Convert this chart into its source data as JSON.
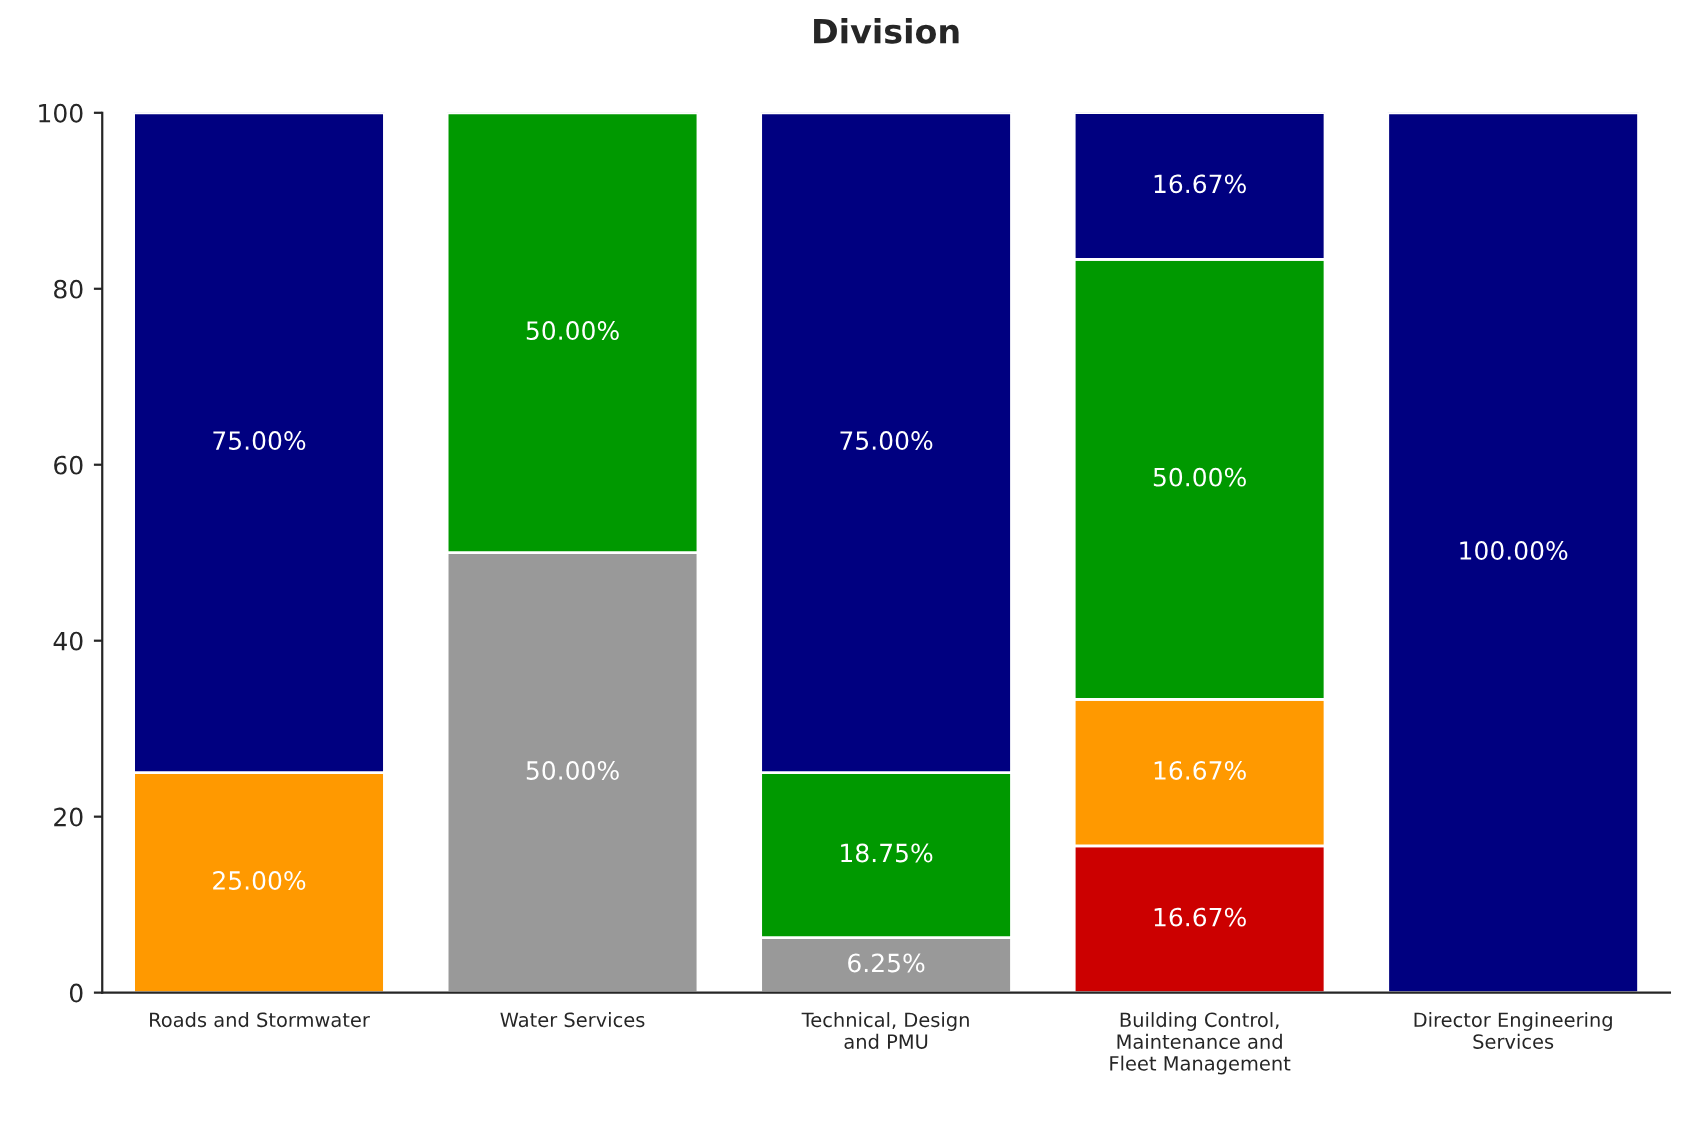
{
  "chart_data": {
    "type": "bar",
    "title": "Division",
    "stacked": true,
    "categories": [
      "Roads and Stormwater",
      "Water Services",
      "Technical, Design\nand PMU",
      "Building Control,\nMaintenance and\nFleet Management",
      "Director Engineering\nServices"
    ],
    "series": [
      {
        "color": "#cc0000",
        "values": [
          null,
          null,
          null,
          16.67,
          null
        ],
        "value_labels": [
          null,
          null,
          null,
          "16.67%",
          null
        ]
      },
      {
        "color": "#ff9900",
        "values": [
          25,
          null,
          null,
          16.67,
          null
        ],
        "value_labels": [
          "25.00%",
          null,
          null,
          "16.67%",
          null
        ]
      },
      {
        "color": "#999999",
        "values": [
          null,
          50,
          6.25,
          null,
          null
        ],
        "value_labels": [
          null,
          "50.00%",
          "6.25%",
          null,
          null
        ]
      },
      {
        "color": "#009900",
        "values": [
          null,
          50,
          18.75,
          50,
          null
        ],
        "value_labels": [
          null,
          "50.00%",
          "18.75%",
          "50.00%",
          null
        ]
      },
      {
        "color": "#000080",
        "values": [
          75,
          null,
          75,
          16.67,
          100
        ],
        "value_labels": [
          "75.00%",
          null,
          "75.00%",
          "16.67%",
          "100.00%"
        ]
      }
    ],
    "ylim": [
      0,
      100
    ],
    "yticks": [
      0,
      20,
      40,
      60,
      80,
      100
    ],
    "grid": false,
    "legend": false
  }
}
